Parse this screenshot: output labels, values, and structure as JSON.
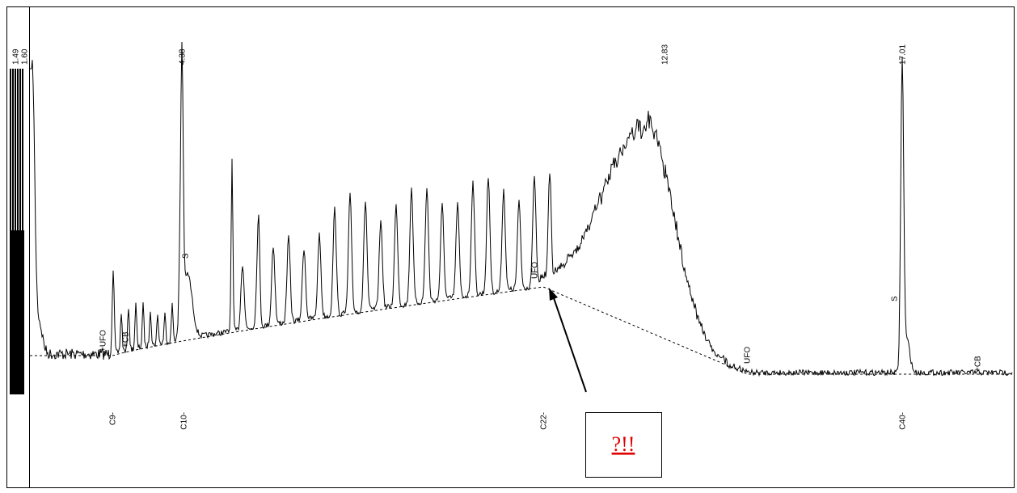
{
  "peak_labels": [
    "1.49",
    "1.60",
    "4.38",
    "12.83",
    "17.01"
  ],
  "markers": [
    "C9-",
    "C10-",
    "C22-",
    "C40-"
  ],
  "annotations": [
    "+UFO",
    "+CB",
    "S",
    "UFO",
    "UFO",
    "S",
    "+CB"
  ],
  "callout": "?!!"
}
